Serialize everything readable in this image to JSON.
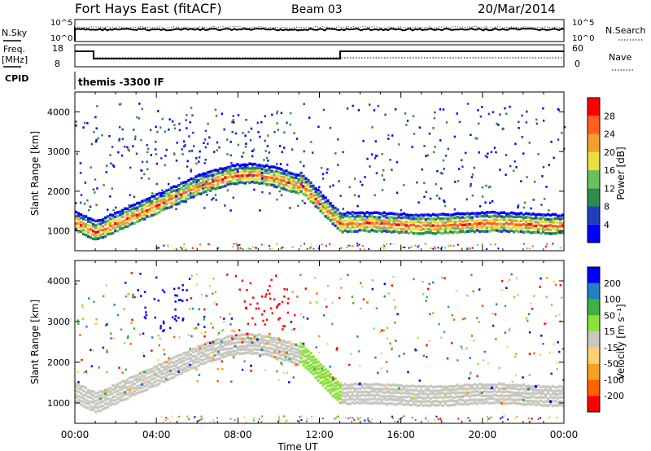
{
  "header": {
    "station": "Fort Hays East (fitACF)",
    "beam": "Beam 03",
    "date": "20/Mar/2014"
  },
  "strip": {
    "nsky_label": "N.Sky",
    "nsky_ticks": [
      "10^5",
      "10^0"
    ],
    "nsearch_label": "N.Search",
    "nsearch_ticks": [
      "10^5",
      "10^0"
    ],
    "freq_label": "Freq.",
    "freq_unit": "[MHz]",
    "freq_ticks": [
      "18",
      "8"
    ],
    "nave_label": "Nave",
    "nave_ticks": [
      "60",
      "0"
    ],
    "cpid_label": "CPID",
    "cpid_value": "themis -3300 IF"
  },
  "chart_data": [
    {
      "type": "heatmap",
      "name": "power",
      "ylabel": "Slant Range [km]",
      "xlim": [
        0,
        24
      ],
      "ylim": [
        500,
        4500
      ],
      "yticks": [
        1000,
        2000,
        3000,
        4000
      ],
      "colorbar": {
        "label": "Power [dB]",
        "ticks": [
          "28",
          "24",
          "20",
          "16",
          "12",
          "8",
          "4"
        ],
        "colors": [
          "#0000ff",
          "#1f3fbf",
          "#2c8c4c",
          "#6cc05c",
          "#e8e040",
          "#f0a030",
          "#ff6020",
          "#ff0000"
        ]
      }
    },
    {
      "type": "heatmap",
      "name": "velocity",
      "ylabel": "Slant Range [km]",
      "xlabel": "Time UT",
      "xlim": [
        0,
        24
      ],
      "ylim": [
        500,
        4500
      ],
      "yticks": [
        1000,
        2000,
        3000,
        4000
      ],
      "xticks": [
        "00:00",
        "04:00",
        "08:00",
        "12:00",
        "16:00",
        "20:00",
        "00:00"
      ],
      "colorbar": {
        "label": "Velocity [m s⁻¹]",
        "ticks": [
          "200",
          "100",
          "50",
          "15",
          "-15",
          "-50",
          "-100",
          "-200"
        ],
        "colors": [
          "#ff0000",
          "#ff6000",
          "#f8a020",
          "#ffd070",
          "#c8c8c0",
          "#8ce040",
          "#40b040",
          "#2080c0",
          "#0000ff"
        ]
      }
    }
  ]
}
